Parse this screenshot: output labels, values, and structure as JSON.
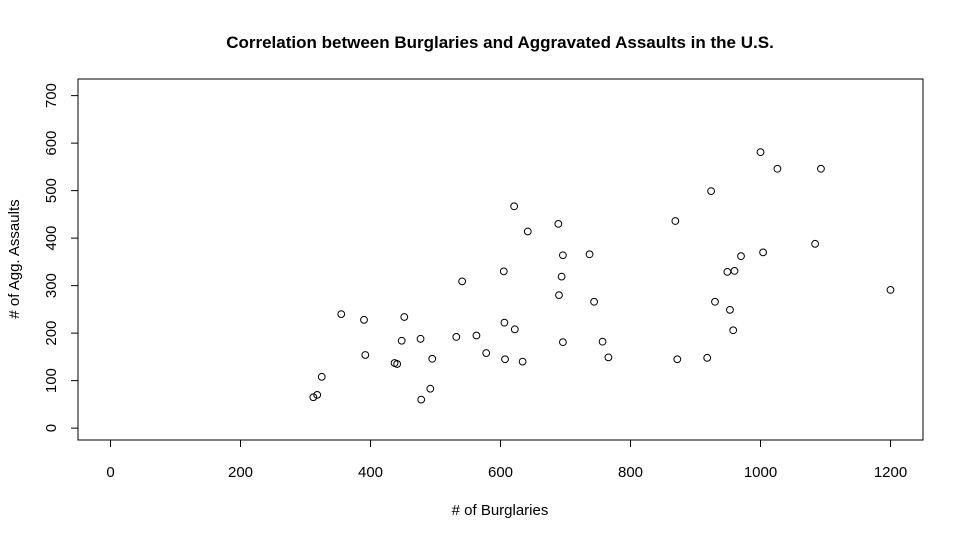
{
  "chart_data": {
    "type": "scatter",
    "title": "Correlation between Burglaries and Aggravated Assaults in the U.S.",
    "xlabel": "# of Burglaries",
    "ylabel": "# of Agg. Assaults",
    "xlim": [
      -50,
      1250
    ],
    "ylim": [
      -25,
      735
    ],
    "xticks": [
      0,
      200,
      400,
      600,
      800,
      1000,
      1200
    ],
    "yticks": [
      0,
      100,
      200,
      300,
      400,
      500,
      600,
      700
    ],
    "grid": false,
    "points": [
      {
        "x": 312,
        "y": 65
      },
      {
        "x": 318,
        "y": 70
      },
      {
        "x": 325,
        "y": 108
      },
      {
        "x": 355,
        "y": 240
      },
      {
        "x": 390,
        "y": 228
      },
      {
        "x": 392,
        "y": 154
      },
      {
        "x": 437,
        "y": 137
      },
      {
        "x": 441,
        "y": 135
      },
      {
        "x": 448,
        "y": 184
      },
      {
        "x": 452,
        "y": 234
      },
      {
        "x": 477,
        "y": 188
      },
      {
        "x": 478,
        "y": 60
      },
      {
        "x": 492,
        "y": 83
      },
      {
        "x": 495,
        "y": 146
      },
      {
        "x": 532,
        "y": 192
      },
      {
        "x": 541,
        "y": 309
      },
      {
        "x": 563,
        "y": 195
      },
      {
        "x": 578,
        "y": 158
      },
      {
        "x": 605,
        "y": 330
      },
      {
        "x": 606,
        "y": 222
      },
      {
        "x": 607,
        "y": 145
      },
      {
        "x": 621,
        "y": 467
      },
      {
        "x": 622,
        "y": 208
      },
      {
        "x": 634,
        "y": 140
      },
      {
        "x": 642,
        "y": 414
      },
      {
        "x": 689,
        "y": 430
      },
      {
        "x": 690,
        "y": 280
      },
      {
        "x": 694,
        "y": 319
      },
      {
        "x": 696,
        "y": 364
      },
      {
        "x": 696,
        "y": 181
      },
      {
        "x": 737,
        "y": 366
      },
      {
        "x": 744,
        "y": 266
      },
      {
        "x": 757,
        "y": 182
      },
      {
        "x": 766,
        "y": 149
      },
      {
        "x": 869,
        "y": 436
      },
      {
        "x": 872,
        "y": 145
      },
      {
        "x": 918,
        "y": 148
      },
      {
        "x": 924,
        "y": 499
      },
      {
        "x": 930,
        "y": 266
      },
      {
        "x": 949,
        "y": 329
      },
      {
        "x": 953,
        "y": 249
      },
      {
        "x": 958,
        "y": 206
      },
      {
        "x": 960,
        "y": 331
      },
      {
        "x": 970,
        "y": 362
      },
      {
        "x": 1000,
        "y": 581
      },
      {
        "x": 1004,
        "y": 370
      },
      {
        "x": 1026,
        "y": 546
      },
      {
        "x": 1084,
        "y": 388
      },
      {
        "x": 1093,
        "y": 546
      },
      {
        "x": 1200,
        "y": 291
      }
    ]
  }
}
